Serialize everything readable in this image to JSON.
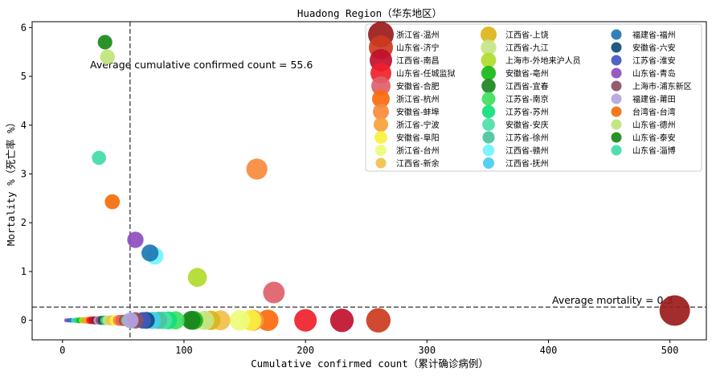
{
  "chart_data": {
    "type": "scatter",
    "title": "Huadong Region（华东地区）",
    "xlabel": "Cumulative confirmed count（累计确诊病例）",
    "ylabel": "Mortality %（死亡率 %）",
    "xlim": [
      -25,
      530
    ],
    "ylim": [
      -0.4,
      6.12
    ],
    "xticks": [
      0,
      100,
      200,
      300,
      400,
      500
    ],
    "yticks": [
      0,
      1,
      2,
      3,
      4,
      5,
      6
    ],
    "grid": false,
    "legend_position": "top-right",
    "reference_lines": [
      {
        "orientation": "vertical",
        "value": 55.6,
        "label": "Average cumulative confirmed count = 55.6"
      },
      {
        "orientation": "horizontal",
        "value": 0.27,
        "label": "Average mortality = 0.3"
      }
    ],
    "series": [
      {
        "name": "浙江省-温州",
        "x": 504,
        "y": 0.2,
        "color": "#9b1b1b"
      },
      {
        "name": "山东省-济宁",
        "x": 260,
        "y": 0.0,
        "color": "#cc3b1e"
      },
      {
        "name": "江西省-南昌",
        "x": 230,
        "y": 0.0,
        "color": "#c0102e"
      },
      {
        "name": "山东省-任城监狱",
        "x": 200,
        "y": 0.0,
        "color": "#f0202a"
      },
      {
        "name": "安徽省-合肥",
        "x": 174,
        "y": 0.57,
        "color": "#e0606a"
      },
      {
        "name": "浙江省-杭州",
        "x": 169,
        "y": 0.0,
        "color": "#fb6a0c"
      },
      {
        "name": "安徽省-蚌埠",
        "x": 160,
        "y": 3.1,
        "color": "#f78a3c"
      },
      {
        "name": "浙江省-宁波",
        "x": 157,
        "y": 0.0,
        "color": "#f9a03a"
      },
      {
        "name": "安徽省-阜阳",
        "x": 155,
        "y": 0.0,
        "color": "#faf040"
      },
      {
        "name": "浙江省-台州",
        "x": 146,
        "y": 0.0,
        "color": "#eefc7a"
      },
      {
        "name": "江西省-新余",
        "x": 130,
        "y": 0.0,
        "color": "#f2c04a"
      },
      {
        "name": "江西省-上饶",
        "x": 122,
        "y": 0.0,
        "color": "#dcb418"
      },
      {
        "name": "江西省-九江",
        "x": 117,
        "y": 0.0,
        "color": "#c4e684"
      },
      {
        "name": "上海市-外地来沪人员",
        "x": 111,
        "y": 0.88,
        "color": "#b0dc2c"
      },
      {
        "name": "安徽省-亳州",
        "x": 108,
        "y": 0.0,
        "color": "#16b916"
      },
      {
        "name": "江西省-宜春",
        "x": 106,
        "y": 0.0,
        "color": "#1c861c"
      },
      {
        "name": "江苏省-南京",
        "x": 93,
        "y": 0.0,
        "color": "#3fe060"
      },
      {
        "name": "江苏省-苏州",
        "x": 87,
        "y": 0.0,
        "color": "#10df7a"
      },
      {
        "name": "安徽省-安庆",
        "x": 83,
        "y": 0.0,
        "color": "#4de0aa"
      },
      {
        "name": "江苏省-徐州",
        "x": 79,
        "y": 0.0,
        "color": "#4ac49a"
      },
      {
        "name": "江西省-赣州",
        "x": 76,
        "y": 1.32,
        "color": "#6ff4ff"
      },
      {
        "name": "江西省-抚州",
        "x": 74,
        "y": 0.0,
        "color": "#44ccf2"
      },
      {
        "name": "福建省-福州",
        "x": 72,
        "y": 1.38,
        "color": "#1f77b4"
      },
      {
        "name": "安徽省-六安",
        "x": 69,
        "y": 0.0,
        "color": "#0e4c7c"
      },
      {
        "name": "江苏省-淮安",
        "x": 66,
        "y": 0.0,
        "color": "#4256c0"
      },
      {
        "name": "山东省-青岛",
        "x": 60,
        "y": 1.65,
        "color": "#8e4cc0"
      },
      {
        "name": "上海市-浦东新区",
        "x": 60,
        "y": 0.0,
        "color": "#8c5060"
      },
      {
        "name": "福建省-莆田",
        "x": 56,
        "y": 0.0,
        "color": "#b4a4e0"
      },
      {
        "name": "台湾省-台湾",
        "x": 41,
        "y": 2.43,
        "color": "#f46d0c"
      },
      {
        "name": "山东省-德州",
        "x": 37,
        "y": 5.4,
        "color": "#c0e478"
      },
      {
        "name": "山东省-泰安",
        "x": 35,
        "y": 5.7,
        "color": "#178a17"
      },
      {
        "name": "山东省-淄博",
        "x": 30,
        "y": 3.33,
        "color": "#40dca6"
      }
    ],
    "small_points_near_zero": {
      "x": [
        3,
        5,
        7,
        9,
        11,
        12,
        14,
        16,
        18,
        20,
        22,
        23,
        25,
        27,
        29,
        31,
        33,
        35,
        37,
        40,
        43,
        46,
        48,
        51,
        53
      ],
      "y": 0,
      "colors": [
        "#8e4cc0",
        "#4256c0",
        "#1f77b4",
        "#44ccf2",
        "#4ac49a",
        "#10df7a",
        "#16b916",
        "#b0dc2c",
        "#dcb418",
        "#f9a03a",
        "#fb6a0c",
        "#f0202a",
        "#c0102e",
        "#9b1b1b",
        "#b4a4e0",
        "#8c5060",
        "#0e4c7c",
        "#3fe060",
        "#c4e684",
        "#f2c04a",
        "#faf040",
        "#f78a3c",
        "#e0606a",
        "#cc3b1e",
        "#40dca6"
      ]
    }
  }
}
